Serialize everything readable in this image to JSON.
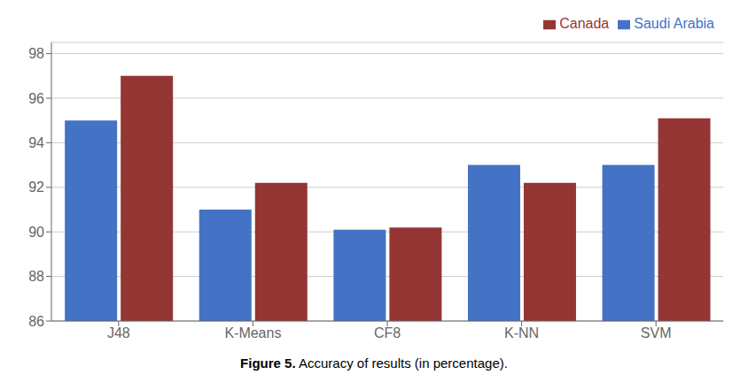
{
  "chart_data": {
    "type": "bar",
    "title": "Figure 5.",
    "subtitle": "Accuracy of results (in percentage).",
    "categories": [
      "J48",
      "K-Means",
      "CF8",
      "K-NN",
      "SVM"
    ],
    "series": [
      {
        "name": "Saudi Arabia",
        "color": "#4472C4",
        "values": [
          95.0,
          91.0,
          90.1,
          93.0,
          93.0
        ]
      },
      {
        "name": "Canada",
        "color": "#943634",
        "values": [
          97.0,
          92.2,
          90.2,
          92.2,
          95.1
        ]
      }
    ],
    "ylim": [
      86,
      98.5
    ],
    "yticks": [
      86,
      88,
      90,
      92,
      94,
      96,
      98
    ],
    "grid": true,
    "legend": "upper right"
  }
}
